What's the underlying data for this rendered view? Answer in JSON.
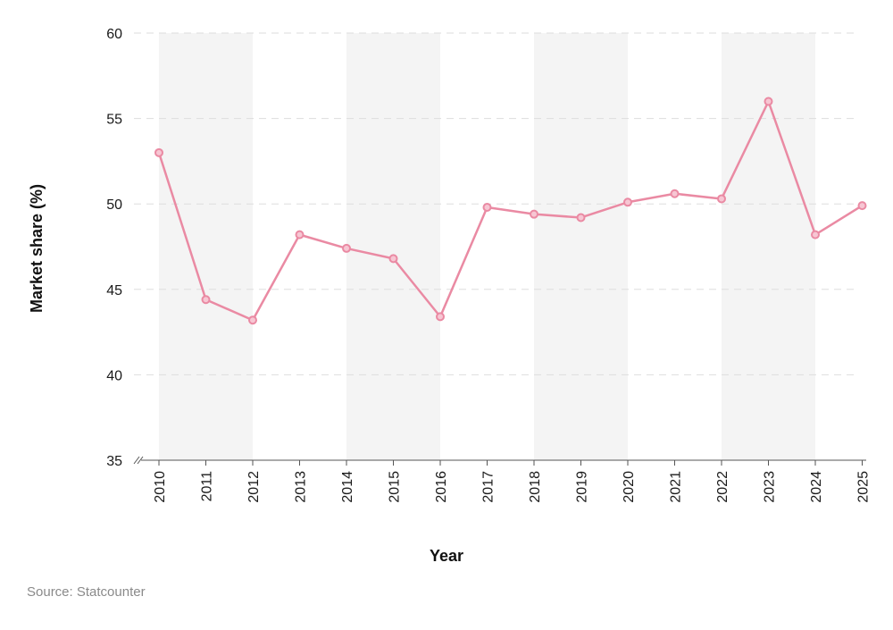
{
  "chart_data": {
    "type": "line",
    "x": [
      "2010",
      "2011",
      "2012",
      "2013",
      "2014",
      "2015",
      "2016",
      "2017",
      "2018",
      "2019",
      "2020",
      "2021",
      "2022",
      "2023",
      "2024",
      "2025"
    ],
    "series": [
      {
        "values": [
          53.0,
          44.4,
          43.2,
          48.2,
          47.4,
          46.8,
          43.4,
          49.8,
          49.4,
          49.2,
          50.1,
          50.6,
          50.3,
          56.0,
          48.2,
          49.9
        ]
      }
    ],
    "xlabel": "Year",
    "ylabel": "Market share (%)",
    "ylim": [
      35,
      60
    ],
    "yticks": [
      "35",
      "40",
      "45",
      "50",
      "55",
      "60"
    ],
    "grid": "horizontal dashed",
    "alternating_bands": true,
    "axis_break": true,
    "colors": {
      "line": "#ea8aa3",
      "marker_fill": "#f7c6d3",
      "band": "#f4f4f4",
      "grid": "#dddddd"
    }
  },
  "source": "Source: Statcounter"
}
